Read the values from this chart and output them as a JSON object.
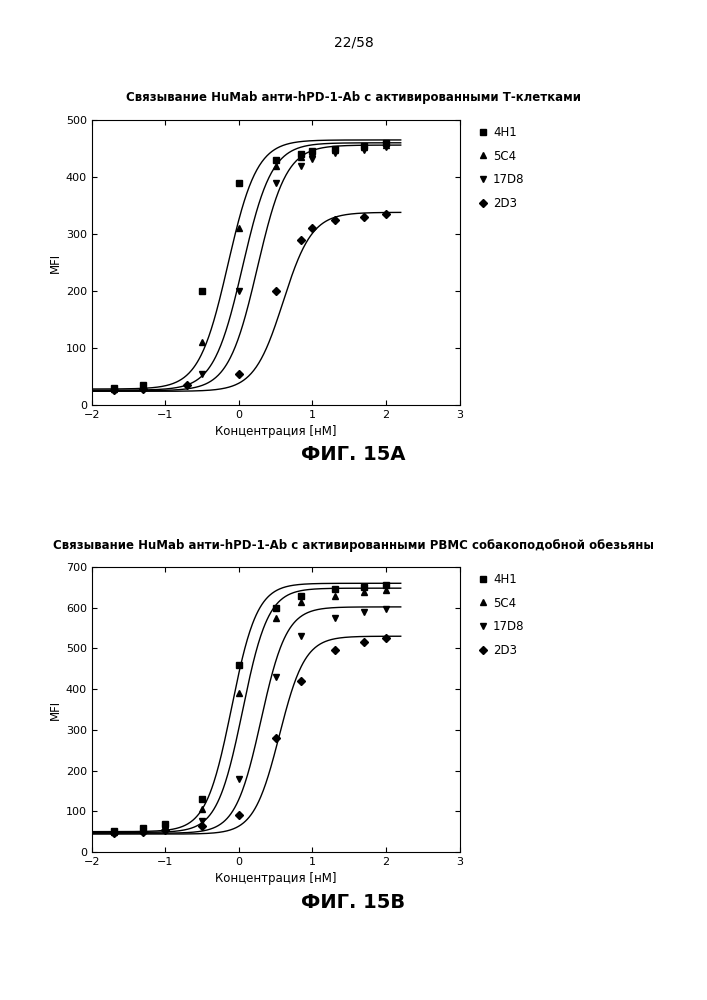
{
  "page_label": "22/58",
  "fig_a": {
    "title": "Связывание HuMab анти-hPD-1-Ab с активированными Т-клетками",
    "xlabel": "Концентрация [нМ]",
    "ylabel": "MFI",
    "xlim": [
      -2,
      3
    ],
    "ylim": [
      0,
      500
    ],
    "xticks": [
      -2,
      -1,
      0,
      1,
      2,
      3
    ],
    "yticks": [
      0,
      100,
      200,
      300,
      400,
      500
    ],
    "caption": "ФИГ. 15А",
    "series": [
      {
        "label": "4H1",
        "marker": "s",
        "x_data": [
          -1.7,
          -1.3,
          -0.5,
          0.0,
          0.5,
          0.85,
          1.0,
          1.3,
          1.7,
          2.0
        ],
        "y_data": [
          30,
          35,
          200,
          390,
          430,
          440,
          445,
          450,
          455,
          460
        ],
        "ec50": -0.15,
        "hill": 2.2,
        "top": 465,
        "bottom": 28
      },
      {
        "label": "5C4",
        "marker": "^",
        "x_data": [
          -1.7,
          -1.3,
          -0.5,
          0.0,
          0.5,
          0.85,
          1.0,
          1.3,
          1.7,
          2.0
        ],
        "y_data": [
          28,
          32,
          110,
          310,
          420,
          435,
          442,
          447,
          452,
          457
        ],
        "ec50": 0.05,
        "hill": 2.2,
        "top": 460,
        "bottom": 26
      },
      {
        "label": "17D8",
        "marker": "v",
        "x_data": [
          -1.7,
          -1.3,
          -0.5,
          0.0,
          0.5,
          0.85,
          1.0,
          1.3,
          1.7,
          2.0
        ],
        "y_data": [
          27,
          30,
          55,
          200,
          390,
          420,
          432,
          442,
          447,
          452
        ],
        "ec50": 0.25,
        "hill": 2.2,
        "top": 456,
        "bottom": 25
      },
      {
        "label": "2D3",
        "marker": "D",
        "x_data": [
          -1.7,
          -1.3,
          -0.7,
          0.0,
          0.5,
          0.85,
          1.0,
          1.3,
          1.7,
          2.0
        ],
        "y_data": [
          26,
          28,
          35,
          55,
          200,
          290,
          310,
          325,
          330,
          335
        ],
        "ec50": 0.6,
        "hill": 2.2,
        "top": 338,
        "bottom": 24
      }
    ]
  },
  "fig_b": {
    "title": "Связывание HuMab анти-hPD-1-Ab с активированными РВМС собакоподобной обезьяны",
    "xlabel": "Концентрация [нМ]",
    "ylabel": "MFI",
    "xlim": [
      -2,
      3
    ],
    "ylim": [
      0,
      700
    ],
    "xticks": [
      -2,
      -1,
      0,
      1,
      2,
      3
    ],
    "yticks": [
      0,
      100,
      200,
      300,
      400,
      500,
      600,
      700
    ],
    "caption": "ФИГ. 15В",
    "series": [
      {
        "label": "4H1",
        "marker": "s",
        "x_data": [
          -1.7,
          -1.3,
          -1.0,
          -0.5,
          0.0,
          0.5,
          0.85,
          1.3,
          1.7,
          2.0
        ],
        "y_data": [
          52,
          58,
          68,
          130,
          460,
          600,
          630,
          645,
          650,
          655
        ],
        "ec50": -0.1,
        "hill": 2.5,
        "top": 660,
        "bottom": 50
      },
      {
        "label": "5C4",
        "marker": "^",
        "x_data": [
          -1.7,
          -1.3,
          -1.0,
          -0.5,
          0.0,
          0.5,
          0.85,
          1.3,
          1.7,
          2.0
        ],
        "y_data": [
          50,
          55,
          63,
          105,
          390,
          575,
          615,
          630,
          638,
          643
        ],
        "ec50": 0.05,
        "hill": 2.5,
        "top": 648,
        "bottom": 48
      },
      {
        "label": "17D8",
        "marker": "v",
        "x_data": [
          -1.7,
          -1.3,
          -1.0,
          -0.5,
          0.0,
          0.5,
          0.85,
          1.3,
          1.7,
          2.0
        ],
        "y_data": [
          48,
          52,
          58,
          75,
          180,
          430,
          530,
          575,
          590,
          598
        ],
        "ec50": 0.3,
        "hill": 2.5,
        "top": 602,
        "bottom": 46
      },
      {
        "label": "2D3",
        "marker": "D",
        "x_data": [
          -1.7,
          -1.3,
          -1.0,
          -0.5,
          0.0,
          0.5,
          0.85,
          1.3,
          1.7,
          2.0
        ],
        "y_data": [
          46,
          50,
          55,
          65,
          90,
          280,
          420,
          495,
          515,
          525
        ],
        "ec50": 0.55,
        "hill": 2.5,
        "top": 530,
        "bottom": 44
      }
    ]
  }
}
